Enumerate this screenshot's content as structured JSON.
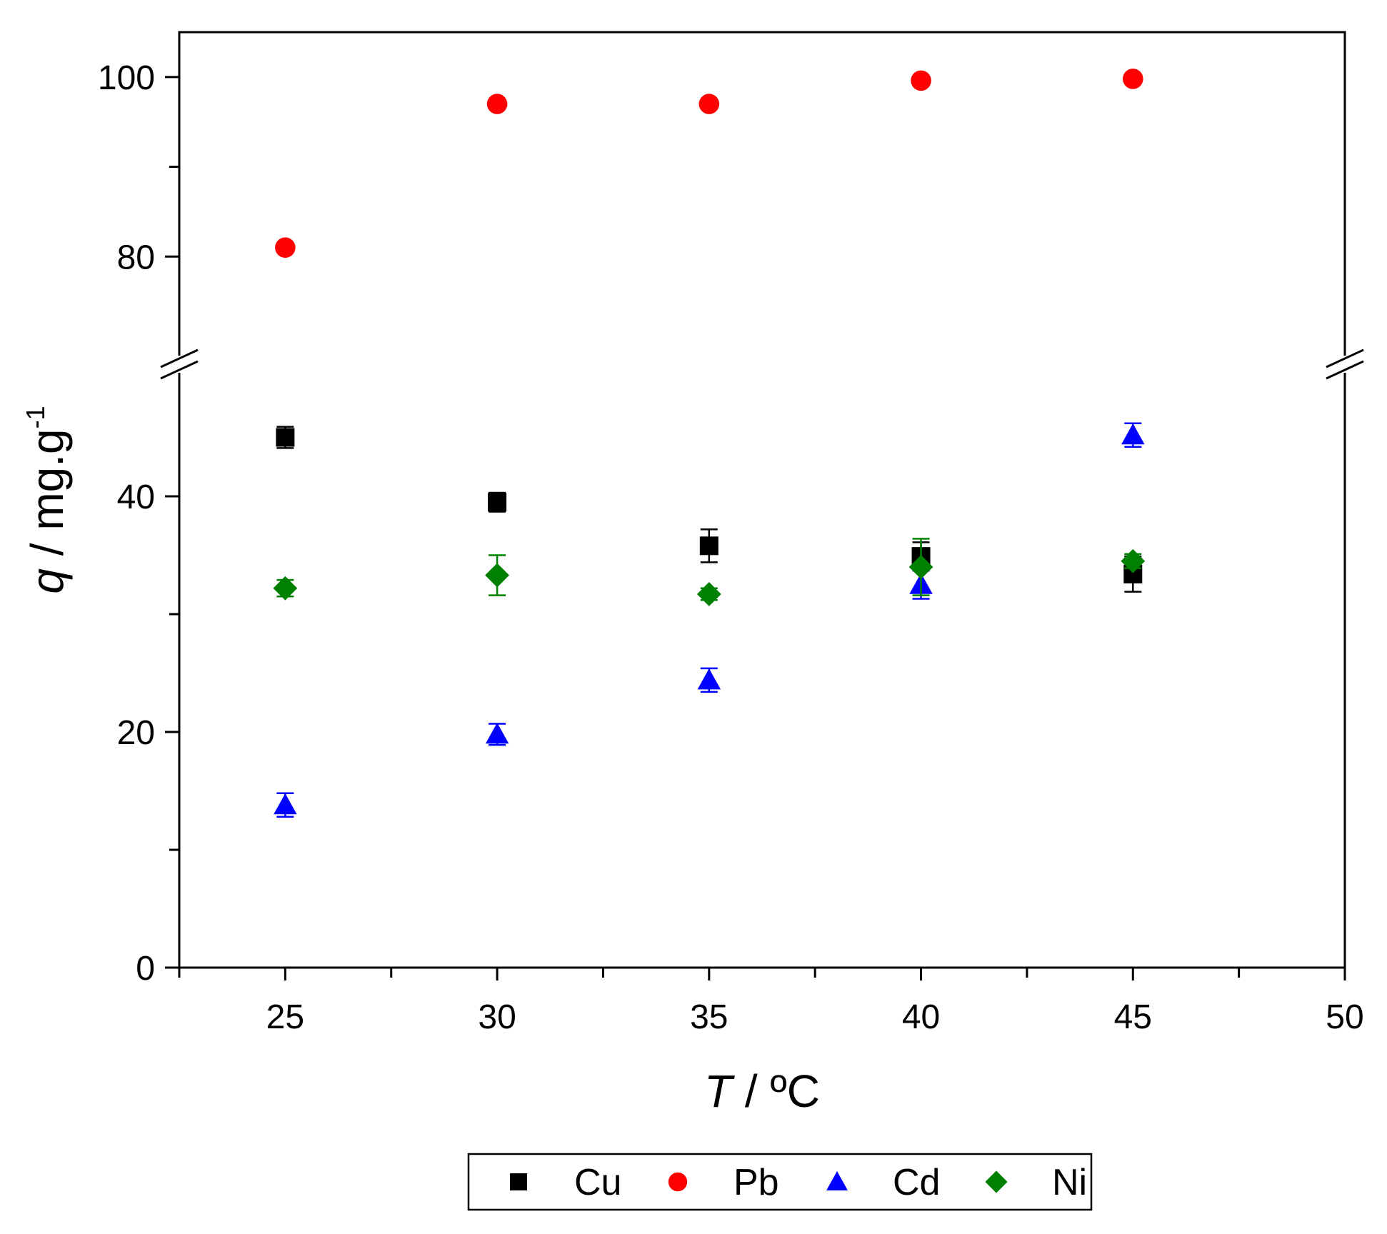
{
  "chart_data": {
    "type": "scatter",
    "xlabel": {
      "italic": "T",
      "rest": " / ºC"
    },
    "ylabel": {
      "italic": "q",
      "rest": " / mg.g",
      "sup": "-1"
    },
    "xlim": [
      22.5,
      50
    ],
    "x_ticks": [
      25,
      30,
      35,
      40,
      45,
      50
    ],
    "x_minor_ticks": [
      22.5,
      27.5,
      32.5,
      37.5,
      42.5,
      47.5
    ],
    "y_lower": {
      "range": [
        0,
        50
      ],
      "ticks": [
        0,
        20,
        40
      ],
      "minor_ticks": [
        10,
        30
      ]
    },
    "y_upper": {
      "range": [
        70,
        105
      ],
      "ticks": [
        80,
        100
      ],
      "minor_ticks": [
        90
      ]
    },
    "axis_break": true,
    "legend": {
      "placement": "bottom"
    },
    "series": [
      {
        "name": "Cu",
        "marker": "square",
        "color": "#000000",
        "x": [
          25,
          30,
          35,
          40,
          45
        ],
        "y": [
          45.0,
          39.5,
          35.8,
          34.9,
          33.4
        ],
        "err": [
          0.9,
          0.8,
          1.4,
          1.2,
          1.5
        ]
      },
      {
        "name": "Pb",
        "marker": "circle",
        "color": "#ff0000",
        "x": [
          25,
          30,
          35,
          40,
          45
        ],
        "y": [
          81.0,
          97.0,
          97.0,
          99.6,
          99.8
        ],
        "err": [
          0,
          0,
          0,
          0,
          0
        ]
      },
      {
        "name": "Cd",
        "marker": "triangle",
        "color": "#0000ff",
        "x": [
          25,
          30,
          35,
          40,
          45
        ],
        "y": [
          13.8,
          19.8,
          24.4,
          32.5,
          45.2
        ],
        "err": [
          1.0,
          0.9,
          1.0,
          1.2,
          1.0
        ]
      },
      {
        "name": "Ni",
        "marker": "diamond",
        "color": "#008000",
        "x": [
          25,
          30,
          35,
          40,
          45
        ],
        "y": [
          32.2,
          33.3,
          31.7,
          34.0,
          34.5
        ],
        "err": [
          0.7,
          1.7,
          0.5,
          2.4,
          0.6
        ]
      }
    ]
  }
}
